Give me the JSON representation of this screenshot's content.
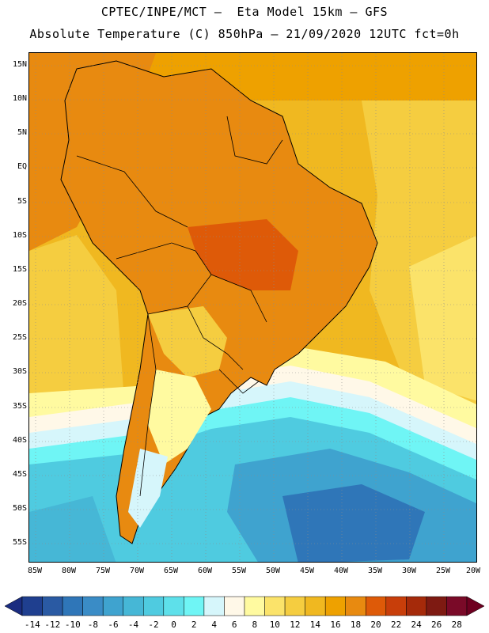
{
  "header": {
    "title_line1": "CPTEC/INPE/MCT —  Eta Model 15km — GFS",
    "title_line2": "Absolute Temperature (C) 850hPa — 21/09/2020 12UTC fct=0h"
  },
  "map": {
    "region": "South America",
    "lat_labels": [
      "15N",
      "10N",
      "5N",
      "EQ",
      "5S",
      "10S",
      "15S",
      "20S",
      "25S",
      "30S",
      "35S",
      "40S",
      "45S",
      "50S",
      "55S"
    ],
    "lon_labels": [
      "85W",
      "80W",
      "75W",
      "70W",
      "65W",
      "60W",
      "55W",
      "50W",
      "45W",
      "40W",
      "35W",
      "30W",
      "25W",
      "20W"
    ]
  },
  "colorbar": {
    "labels": [
      "-14",
      "-12",
      "-10",
      "-8",
      "-6",
      "-4",
      "-2",
      "0",
      "2",
      "4",
      "6",
      "8",
      "10",
      "12",
      "14",
      "16",
      "18",
      "20",
      "22",
      "24",
      "26",
      "28"
    ],
    "colors": [
      "#1f3f8f",
      "#2a5aa3",
      "#2f76b8",
      "#3a8cc6",
      "#3fa3cf",
      "#46b7d6",
      "#4fcbe0",
      "#5ee0ea",
      "#6ff5f5",
      "#d6f6fb",
      "#fff8e8",
      "#fffaa0",
      "#fbe36a",
      "#f5cd40",
      "#f0b820",
      "#eea100",
      "#e88a10",
      "#de5a08",
      "#c83e0a",
      "#a52a0a",
      "#7e1a12",
      "#7a0a28"
    ],
    "under_color": "#1a2c80",
    "over_color": "#6e0020"
  }
}
